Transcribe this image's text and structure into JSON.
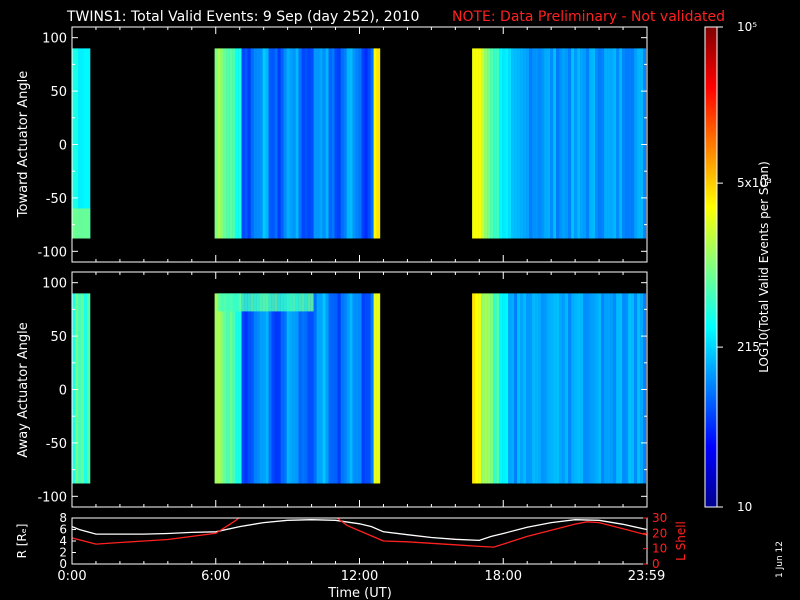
{
  "header": {
    "title": "TWINS1: Total Valid Events:  9 Sep (day 252), 2010",
    "note": "NOTE: Data Preliminary - Not validated"
  },
  "colors": {
    "background": "#000000",
    "axes": "#ffffff",
    "note_text": "#ff2020",
    "r_line": "#ffffff",
    "lshell_line": "#ff2020"
  },
  "chart_data": [
    {
      "type": "heatmap",
      "panel": "toward",
      "ylabel": "Toward Actuator Angle",
      "ylim": [
        -110,
        110
      ],
      "yticks": [
        "100",
        "50",
        "0",
        "-50",
        "-100"
      ],
      "ytick_values": [
        100,
        50,
        0,
        -50,
        -100
      ],
      "xlim": [
        0,
        24
      ],
      "angle_range": [
        -88,
        90
      ],
      "data_blocks": [
        {
          "start": 0.0,
          "end": 0.75
        },
        {
          "start": 5.95,
          "end": 12.85
        },
        {
          "start": 16.7,
          "end": 23.95
        }
      ]
    },
    {
      "type": "heatmap",
      "panel": "away",
      "ylabel": "Away Actuator Angle",
      "ylim": [
        -110,
        110
      ],
      "yticks": [
        "100",
        "50",
        "0",
        "-50",
        "-100"
      ],
      "ytick_values": [
        100,
        50,
        0,
        -50,
        -100
      ],
      "xlim": [
        0,
        24
      ],
      "angle_range": [
        -88,
        90
      ],
      "data_blocks": [
        {
          "start": 0.0,
          "end": 0.75
        },
        {
          "start": 5.95,
          "end": 12.85
        },
        {
          "start": 16.7,
          "end": 23.95
        }
      ]
    },
    {
      "type": "line",
      "panel": "orbit",
      "xlabel": "Time (UT)",
      "xlim": [
        0,
        24
      ],
      "xticks": [
        "0:00",
        "6:00",
        "12:00",
        "18:00",
        "23:59"
      ],
      "xtick_values": [
        0,
        6,
        12,
        18,
        23.98
      ],
      "left_axis": {
        "label": "R [Rₑ]",
        "ylim": [
          0,
          8
        ],
        "yticks": [
          "8",
          "6",
          "4",
          "2",
          "0"
        ],
        "ytick_values": [
          8,
          6,
          4,
          2,
          0
        ]
      },
      "right_axis": {
        "label": "L Shell",
        "ylim": [
          0,
          30
        ],
        "yticks": [
          "30",
          "20",
          "10",
          "0"
        ],
        "ytick_values": [
          30,
          20,
          10,
          0
        ]
      },
      "series": [
        {
          "axis": "left",
          "x": [
            0,
            0.3,
            1,
            2,
            3,
            4,
            5,
            6,
            7,
            8,
            9,
            10,
            11,
            12,
            12.5,
            13,
            14,
            15,
            16,
            17,
            17.5,
            18,
            19,
            20,
            21,
            22,
            23,
            23.98
          ],
          "y": [
            6.5,
            6.0,
            5.2,
            5.2,
            5.2,
            5.3,
            5.5,
            5.6,
            6.5,
            7.2,
            7.6,
            7.7,
            7.6,
            7.0,
            6.5,
            5.6,
            5.1,
            4.6,
            4.3,
            4.1,
            4.8,
            5.3,
            6.4,
            7.2,
            7.7,
            7.6,
            6.9,
            6.0
          ]
        },
        {
          "axis": "right",
          "x": [
            0,
            1,
            2,
            3,
            4,
            5,
            6,
            6.8,
            7.2,
            10.8,
            11.5,
            13,
            14,
            15,
            16,
            17,
            17.6,
            18,
            19,
            20,
            21,
            21.5,
            22,
            23,
            23.98
          ],
          "y": [
            17,
            13,
            14,
            15,
            16,
            18,
            20,
            28,
            33,
            33,
            25,
            15,
            14.5,
            13.5,
            12.5,
            11.5,
            11,
            13,
            18,
            22,
            26,
            27.5,
            27,
            23,
            19
          ]
        }
      ]
    },
    {
      "type": "colorbar",
      "label": "LOG10(Total Valid Events per Scan)",
      "scale": "log",
      "range": [
        10,
        100000
      ],
      "ticks": [
        "10",
        "215",
        "5x10³",
        "10⁵"
      ],
      "tick_values": [
        10,
        215,
        5000,
        100000
      ]
    }
  ],
  "footer": {
    "stamp": "1 Jun 12"
  }
}
